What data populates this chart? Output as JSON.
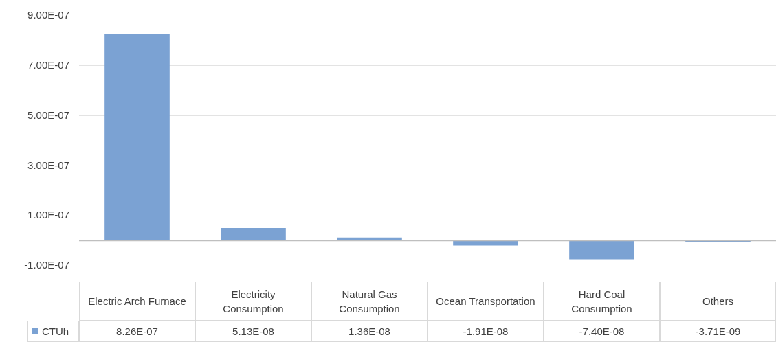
{
  "chart_data": {
    "type": "bar",
    "categories": [
      "Electric Arch Furnace",
      "Electricity Consumption",
      "Natural Gas Consumption",
      "Ocean Transportation",
      "Hard Coal Consumption",
      "Others"
    ],
    "series": [
      {
        "name": "CTUh",
        "color": "#7ba2d3",
        "values": [
          8.26e-07,
          5.13e-08,
          1.36e-08,
          -1.91e-08,
          -7.4e-08,
          -3.71e-09
        ],
        "value_labels": [
          "8.26E-07",
          "5.13E-08",
          "1.36E-08",
          "-1.91E-08",
          "-7.40E-08",
          "-3.71E-09"
        ]
      }
    ],
    "ylim": [
      -1e-07,
      9e-07
    ],
    "yticks": [
      {
        "value": -1e-07,
        "label": "-1.00E-07"
      },
      {
        "value": 1e-07,
        "label": "1.00E-07"
      },
      {
        "value": 3e-07,
        "label": "3.00E-07"
      },
      {
        "value": 5e-07,
        "label": "5.00E-07"
      },
      {
        "value": 7e-07,
        "label": "7.00E-07"
      },
      {
        "value": 9e-07,
        "label": "9.00E-07"
      }
    ],
    "grid": "y",
    "legend": "bottom left"
  }
}
